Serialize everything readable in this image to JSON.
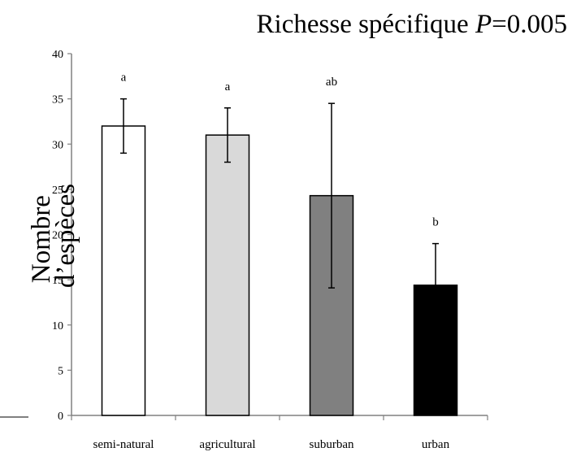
{
  "chart_data": {
    "type": "bar",
    "title_text": "Richesse spécifique ",
    "title_p": "P",
    "title_value": "=0.005",
    "ylabel_line1": "Nombre",
    "ylabel_line2": "d’espèces",
    "xlabel": "",
    "categories": [
      "semi-natural",
      "agricultural",
      "suburban",
      "urban"
    ],
    "values": [
      32,
      31,
      24.3,
      14.4
    ],
    "errors": [
      3,
      3,
      10.2,
      4.6
    ],
    "significance": [
      "a",
      "a",
      "ab",
      "b"
    ],
    "colors": [
      "#ffffff",
      "#d9d9d9",
      "#808080",
      "#000000"
    ],
    "ylim": [
      0,
      40
    ],
    "yticks": [
      "0",
      "5",
      "10",
      "15",
      "20",
      "25",
      "30",
      "35",
      "40"
    ],
    "grid": false,
    "legend": "none"
  }
}
